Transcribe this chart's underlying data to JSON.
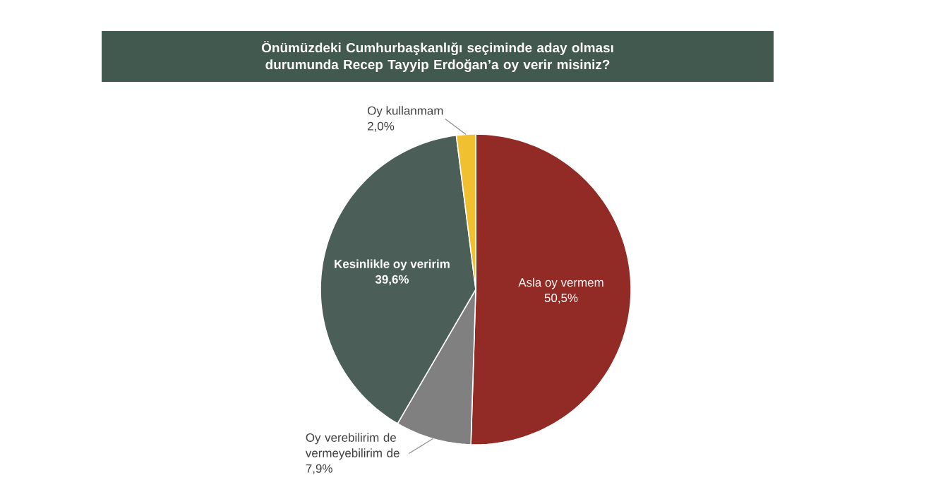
{
  "chart_data": {
    "type": "pie",
    "title": "Önümüzdeki Cumhurbaşkanlığı seçiminde aday olması durumunda Recep Tayyip Erdoğan’a oy verir misiniz?",
    "categories": [
      "Asla oy vermem",
      "Oy verebilirim de vermeyebilirim de",
      "Kesinlikle oy veririm",
      "Oy kullanmam"
    ],
    "values": [
      50.5,
      7.9,
      39.6,
      2.0
    ],
    "value_labels": [
      "50,5%",
      "7,9%",
      "39,6%",
      "2,0%"
    ],
    "colors": [
      "#922b25",
      "#808080",
      "#4b5f58",
      "#f0c030"
    ]
  }
}
